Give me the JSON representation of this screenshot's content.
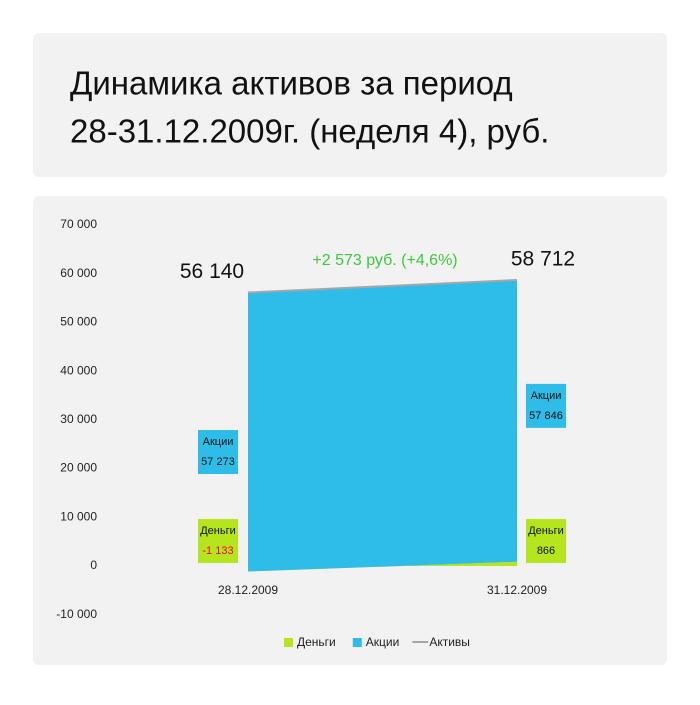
{
  "chart_data": {
    "type": "stacked-area",
    "title": [
      "Динамика активов за период",
      "28-31.12.2009г. (неделя 4), руб."
    ],
    "annotation": "+2 573 руб. (+4,6%)",
    "categories": [
      "28.12.2009",
      "31.12.2009"
    ],
    "series": [
      {
        "name": "Деньги",
        "color": "#b5e61d",
        "values": [
          -1133,
          866
        ],
        "value_labels": [
          "-1 133",
          "866"
        ],
        "negative_color": "#ff0000"
      },
      {
        "name": "Акции",
        "color": "#2dbde8",
        "values": [
          57273,
          57846
        ],
        "value_labels": [
          "57 273",
          "57 846"
        ]
      },
      {
        "name": "Активы",
        "color": "#a6a6a6",
        "type": "line",
        "values": [
          56140,
          58712
        ],
        "value_labels": [
          "56 140",
          "58 712"
        ]
      }
    ],
    "ylim": [
      -10000,
      70000
    ],
    "yticks": [
      {
        "value": -10000,
        "label": "-10 000"
      },
      0,
      {
        "value": 10000,
        "label": "10 000"
      },
      {
        "value": 20000,
        "label": "20 000"
      },
      {
        "value": 30000,
        "label": "30 000"
      },
      {
        "value": 40000,
        "label": "40 000"
      },
      {
        "value": 50000,
        "label": "50 000"
      },
      {
        "value": 60000,
        "label": "60 000"
      },
      {
        "value": 70000,
        "label": "70 000"
      }
    ],
    "grid": false,
    "legend": "bottom"
  }
}
